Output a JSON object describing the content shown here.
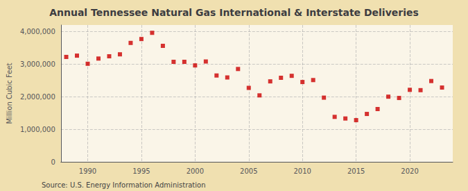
{
  "chart_data": {
    "type": "scatter",
    "title": "Annual Tennessee Natural Gas International & Interstate Deliveries",
    "ylabel": "Million Cubic Feet",
    "annotations": [
      "Source: U.S. Energy Information Administration"
    ],
    "x": [
      1988,
      1989,
      1990,
      1991,
      1992,
      1993,
      1994,
      1995,
      1996,
      1997,
      1998,
      1999,
      2000,
      2001,
      2002,
      2003,
      2004,
      2005,
      2006,
      2007,
      2008,
      2009,
      2010,
      2011,
      2012,
      2013,
      2014,
      2015,
      2016,
      2017,
      2018,
      2019,
      2020,
      2021,
      2022,
      2023
    ],
    "values": [
      3220000,
      3260000,
      3010000,
      3170000,
      3240000,
      3300000,
      3650000,
      3770000,
      3960000,
      3560000,
      3070000,
      3070000,
      2960000,
      3080000,
      2650000,
      2590000,
      2850000,
      2270000,
      2040000,
      2470000,
      2580000,
      2640000,
      2450000,
      2510000,
      1970000,
      1380000,
      1330000,
      1280000,
      1470000,
      1620000,
      2000000,
      1960000,
      2210000,
      2200000,
      2480000,
      2280000
    ],
    "color": "#cc0000",
    "marker": "square",
    "xlim": [
      1987.5,
      2024
    ],
    "xticks": [
      1990,
      1995,
      2000,
      2005,
      2010,
      2015,
      2020
    ],
    "ylim": [
      0,
      4200000
    ],
    "yticks": [
      0,
      {
        "value": 1000000,
        "label": "1,000,000"
      },
      {
        "value": 2000000,
        "label": "2,000,000"
      },
      {
        "value": 3000000,
        "label": "3,000,000"
      },
      {
        "value": 4000000,
        "label": "4,000,000"
      }
    ],
    "grid": true
  }
}
